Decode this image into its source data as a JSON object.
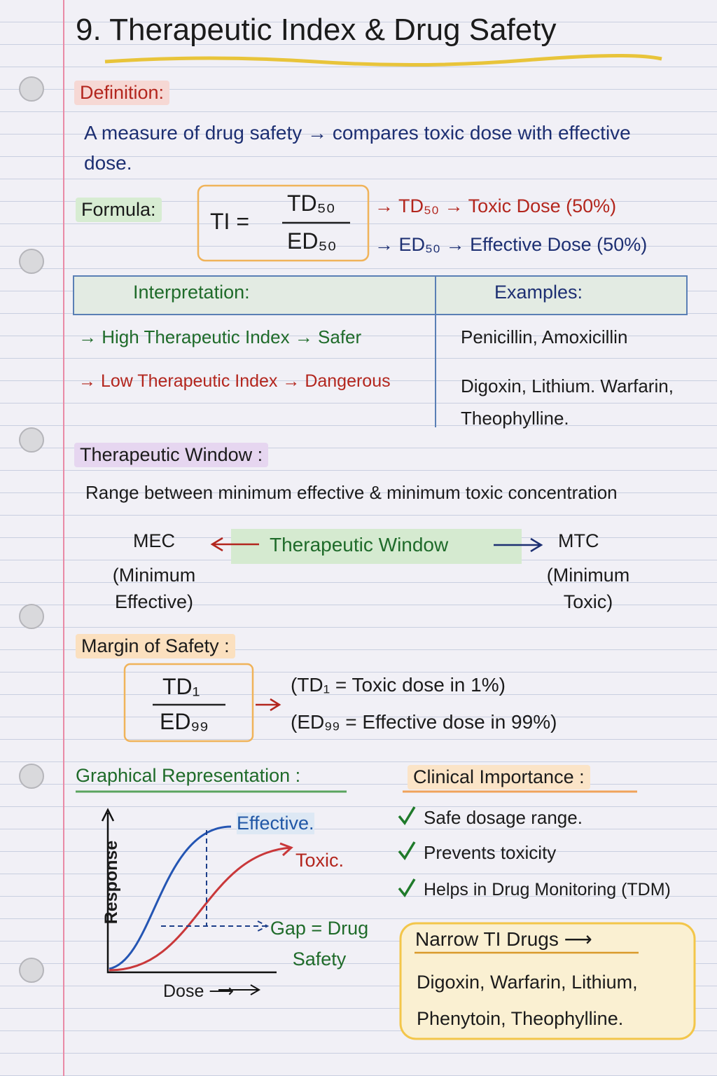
{
  "title": "9. Therapeutic Index & Drug Safety",
  "definition": {
    "heading": "Definition:",
    "text": "A measure of drug safety → compares toxic dose with effective dose."
  },
  "formula": {
    "heading": "Formula:",
    "lhs": "TI =",
    "numerator": "TD₅₀",
    "denominator": "ED₅₀",
    "notes": [
      "→ TD₅₀ → Toxic Dose (50%)",
      "→ ED₅₀ → Effective Dose (50%)"
    ]
  },
  "interpretation_table": {
    "headers": [
      "Interpretation:",
      "Examples:"
    ],
    "rows": [
      [
        "→ High Therapeutic Index → Safer",
        "Penicillin, Amoxicillin"
      ],
      [
        "→ Low Therapeutic Index → Dangerous",
        "Digoxin, Lithium. Warfarin, Theophylline."
      ]
    ]
  },
  "therapeutic_window": {
    "heading": "Therapeutic Window :",
    "text": "Range between minimum effective & minimum toxic concentration",
    "left": {
      "label": "MEC",
      "sub": "(Minimum Effective)"
    },
    "center": "Therapeutic Window",
    "right": {
      "label": "MTC",
      "sub": "(Minimum Toxic)"
    }
  },
  "margin_of_safety": {
    "heading": "Margin of Safety :",
    "numerator": "TD₁",
    "denominator": "ED₉₉",
    "notes": [
      "(TD₁ = Toxic dose in 1%)",
      "(ED₉₉ = Effective dose in 99%)"
    ]
  },
  "graph": {
    "heading": "Graphical Representation :",
    "y_label": "Response",
    "x_label": "Dose ⟶",
    "curves": [
      "Effective.",
      "Toxic."
    ],
    "gap_label": "Gap = Drug Safety"
  },
  "clinical_importance": {
    "heading": "Clinical Importance :",
    "items": [
      "Safe dosage range.",
      "Prevents toxicity",
      "Helps in Drug Monitoring (TDM)"
    ]
  },
  "narrow_ti": {
    "heading": "Narrow TI Drugs ⟶",
    "drugs": "Digoxin, Warfarin, Lithium, Phenytoin, Theophylline."
  }
}
